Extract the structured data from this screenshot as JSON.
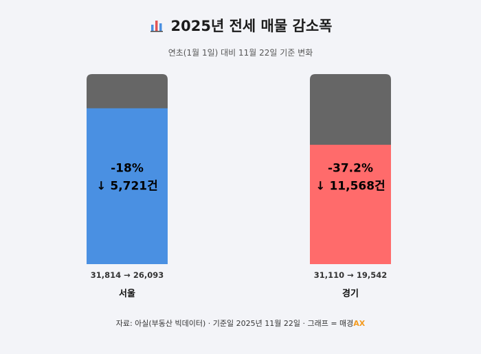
{
  "title": "2025년 전세 매물 감소폭",
  "subtitle": "연초(1월 1일) 대비 11월 22일 기준 변화",
  "title_icon": "bar-chart-icon",
  "chart_data": {
    "type": "bar",
    "bars": [
      {
        "region": "서울",
        "start": 31814,
        "end": 26093,
        "change_pct_label": "-18%",
        "change_count_label": "↓ 5,721건",
        "range_label": "31,814 → 26,093",
        "color": "#4a90e2"
      },
      {
        "region": "경기",
        "start": 31110,
        "end": 19542,
        "change_pct_label": "-37.2%",
        "change_count_label": "↓ 11,568건",
        "range_label": "31,110 → 19,542",
        "color": "#ff6b6b"
      }
    ],
    "removed_color": "#666666"
  },
  "source": {
    "text": "자료: 아실(부동산 빅데이터) · 기준일 2025년 11월 22일 · 그래프 = 매경",
    "brand": "AX"
  }
}
